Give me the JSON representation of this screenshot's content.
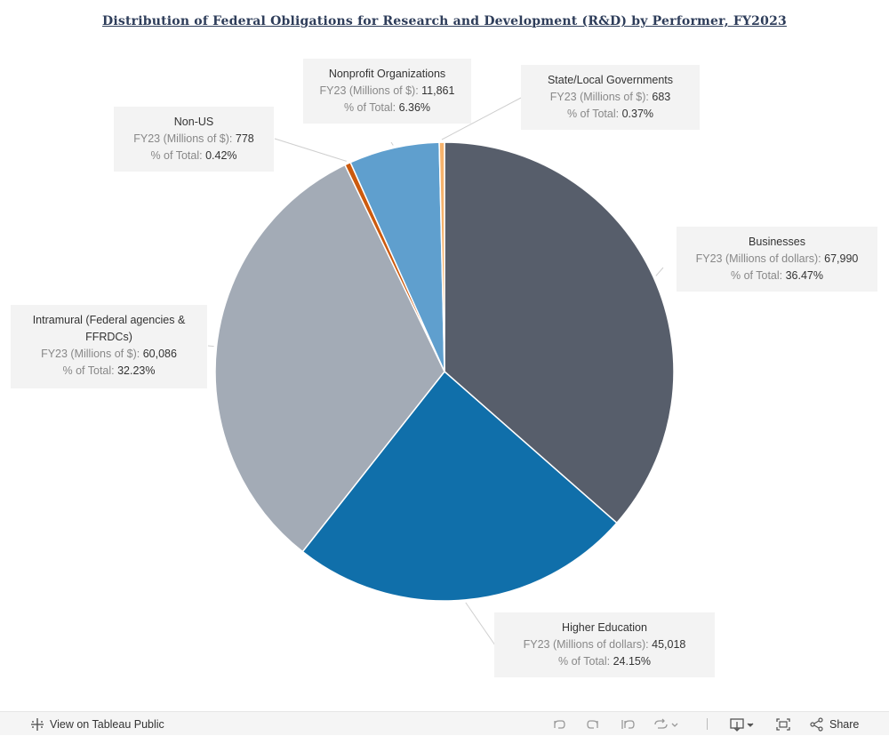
{
  "chart_data": {
    "type": "pie",
    "title": "Distribution of Federal Obligations for Research and Development (R&D) by Performer, FY2023",
    "slices": [
      {
        "name": "Businesses",
        "value": 67990,
        "value_label": "FY23 (Millions of dollars): ",
        "value_text": "67,990",
        "pct_label": "% of Total: ",
        "pct_text": "36.47%",
        "percent": 36.47,
        "color": "#575e6b"
      },
      {
        "name": "Higher Education",
        "value": 45018,
        "value_label": "FY23 (Millions of dollars): ",
        "value_text": "45,018",
        "pct_label": "% of Total: ",
        "pct_text": "24.15%",
        "percent": 24.15,
        "color": "#106faa"
      },
      {
        "name": "Intramural (Federal agencies & FFRDCs)",
        "value": 60086,
        "value_label": "FY23 (Millions of $): ",
        "value_text": "60,086",
        "pct_label": "% of Total: ",
        "pct_text": "32.23%",
        "percent": 32.23,
        "color": "#a3abb6"
      },
      {
        "name": "Non-US",
        "value": 778,
        "value_label": "FY23 (Millions of $): ",
        "value_text": "778",
        "pct_label": "% of Total: ",
        "pct_text": "0.42%",
        "percent": 0.42,
        "color": "#cc5a0e"
      },
      {
        "name": "Nonprofit Organizations",
        "value": 11861,
        "value_label": "FY23 (Millions of $): ",
        "value_text": "11,861",
        "pct_label": "% of Total: ",
        "pct_text": "6.36%",
        "percent": 6.36,
        "color": "#5f9fce"
      },
      {
        "name": "State/Local Governments",
        "value": 683,
        "value_label": "FY23 (Millions of $): ",
        "value_text": "683",
        "pct_label": "% of Total: ",
        "pct_text": "0.37%",
        "percent": 0.37,
        "color": "#f6b26b"
      }
    ]
  },
  "toolbar": {
    "view_label": "View on Tableau Public",
    "share_label": "Share"
  },
  "colors": {
    "toolbar_bg": "#f5f5f5",
    "callout_bg": "#f3f3f3",
    "title": "#2e3d5a"
  }
}
